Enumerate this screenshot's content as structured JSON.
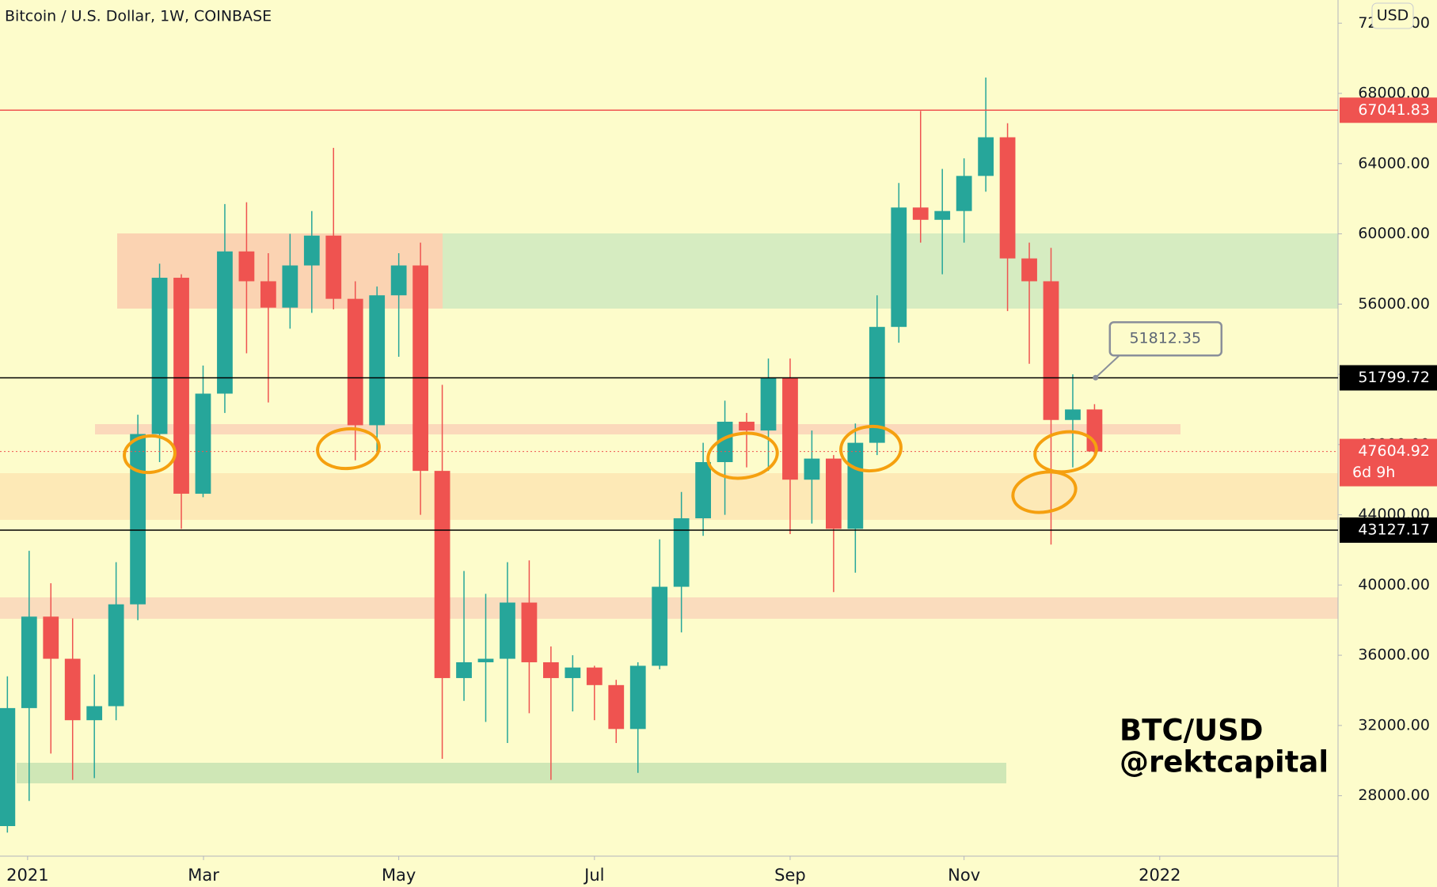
{
  "chart_data": {
    "type": "candlestick",
    "title": "Bitcoin / U.S. Dollar, 1W, COINBASE",
    "currency": "USD",
    "up_color": "#26a69a",
    "down_color": "#ef5350",
    "grid": false,
    "open": [
      26270,
      32990,
      38200,
      35800,
      32300,
      33100,
      38900,
      48600,
      57500,
      45200,
      50900,
      59000,
      57300,
      55800,
      58200,
      59900,
      56300,
      49100,
      56500,
      58200,
      46500,
      34700,
      35600,
      35800,
      39000,
      35600,
      34700,
      35300,
      34300,
      31800,
      35400,
      39900,
      43800,
      47000,
      49300,
      48800,
      51800,
      46000,
      47200,
      43200,
      48100,
      54700,
      61500,
      60800,
      61300,
      63300,
      65500,
      58600,
      57300,
      49400,
      50000
    ],
    "high": [
      34800,
      41950,
      40100,
      38100,
      34900,
      41300,
      49700,
      58300,
      57700,
      52500,
      61700,
      61800,
      58900,
      60000,
      61300,
      64900,
      57300,
      57000,
      58900,
      59500,
      51400,
      40800,
      39500,
      41300,
      41400,
      36500,
      36000,
      35400,
      34600,
      35600,
      42600,
      45300,
      48100,
      50500,
      49800,
      52900,
      52900,
      48800,
      47400,
      49200,
      56500,
      62900,
      67000,
      63700,
      64300,
      68900,
      66300,
      59500,
      59200,
      52000,
      50300
    ],
    "low": [
      25900,
      27700,
      30400,
      28900,
      29000,
      32300,
      38000,
      47000,
      43200,
      45000,
      49800,
      53200,
      50400,
      54600,
      55500,
      55700,
      47100,
      47600,
      53000,
      44000,
      30100,
      33400,
      32200,
      31000,
      32700,
      28900,
      32800,
      32300,
      31000,
      29300,
      35200,
      37300,
      42800,
      44000,
      46700,
      46500,
      42900,
      43500,
      39600,
      40700,
      47400,
      53800,
      59500,
      57700,
      59500,
      62400,
      55600,
      52600,
      42300,
      46700,
      47400
    ],
    "close": [
      32990,
      38200,
      35800,
      32300,
      33100,
      38900,
      48600,
      57500,
      45200,
      50900,
      59000,
      57300,
      55800,
      58200,
      59900,
      56300,
      49100,
      56500,
      58200,
      46500,
      34700,
      35600,
      35800,
      39000,
      35600,
      34700,
      35300,
      34300,
      31800,
      35400,
      39900,
      43800,
      47000,
      49300,
      48800,
      51800,
      46000,
      47200,
      43200,
      48100,
      54700,
      61500,
      60800,
      61300,
      63300,
      65500,
      58600,
      57300,
      49400,
      50000,
      47604.92
    ],
    "xlim": [
      -0.34,
      61.2
    ],
    "xticks": [
      {
        "value": 0.93,
        "label": "2021"
      },
      {
        "value": 9.02,
        "label": "Mar"
      },
      {
        "value": 18.0,
        "label": "May"
      },
      {
        "value": 27.0,
        "label": "Jul"
      },
      {
        "value": 36.0,
        "label": "Sep"
      },
      {
        "value": 44.0,
        "label": "Nov"
      },
      {
        "value": 53.0,
        "label": "2022"
      }
    ],
    "ylim": [
      24558,
      73319
    ],
    "yticks": [
      {
        "value": 28000,
        "label": "28000.00"
      },
      {
        "value": 32000,
        "label": "32000.00"
      },
      {
        "value": 36000,
        "label": "36000.00"
      },
      {
        "value": 40000,
        "label": "40000.00"
      },
      {
        "value": 44000,
        "label": "44000.00"
      },
      {
        "value": 48000,
        "label": "48000.00"
      },
      {
        "value": 52000,
        "label": "52000.00"
      },
      {
        "value": 56000,
        "label": "56000.00"
      },
      {
        "value": 60000,
        "label": "60000.00"
      },
      {
        "value": 64000,
        "label": "64000.00"
      },
      {
        "value": 68000,
        "label": "68000.00"
      },
      {
        "value": 72000,
        "label": "72000.00"
      }
    ],
    "price_lines": [
      {
        "value": 67041.83,
        "color": "#ef5350"
      },
      {
        "value": 51799.72,
        "color": "#000000"
      },
      {
        "value": 43127.17,
        "color": "#000000"
      }
    ],
    "last_price": {
      "value": 47604.92,
      "countdown": "6d 9h",
      "color": "#ef5350"
    },
    "callout": {
      "value": 51812.35
    },
    "annotations": [
      "BTC/USD",
      "@rektcapital"
    ]
  }
}
